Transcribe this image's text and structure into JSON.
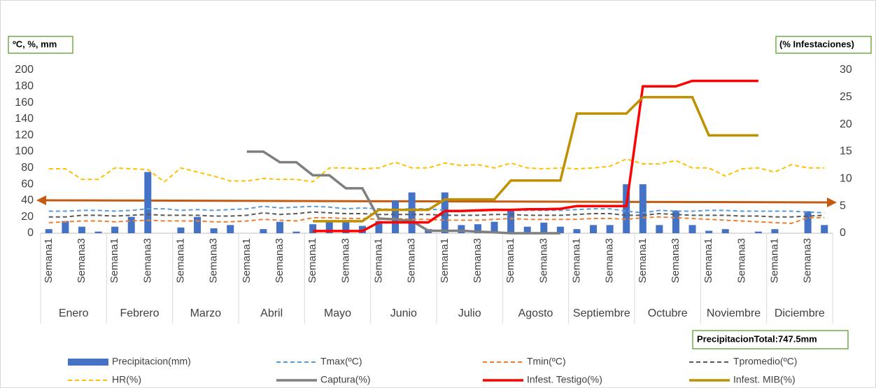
{
  "chart_data": {
    "type": "combo",
    "y_label": "ºC, %, mm",
    "y2_label": "(% Infestaciones)",
    "annotation": "PrecipitacionTotal:747.5mm",
    "groups": [
      "Enero",
      "Febrero",
      "Marzo",
      "Abril",
      "Mayo",
      "Junio",
      "Julio",
      "Agosto",
      "Septiembre",
      "Octubre",
      "Noviembre",
      "Diciembre"
    ],
    "categories": [
      "Semana1",
      null,
      "Semana3",
      null,
      "Semana1",
      null,
      "Semana3",
      null,
      "Semana1",
      null,
      "Semana3",
      null,
      "Semana1",
      null,
      "Semana3",
      null,
      "Semana1",
      null,
      "Semana3",
      null,
      "Semana1",
      null,
      "Semana3",
      null,
      "Semana1",
      null,
      "Semana3",
      null,
      "Semana1",
      null,
      "Semana3",
      null,
      "Semana1",
      null,
      "Semana3",
      null,
      "Semana1",
      null,
      "Semana3",
      null,
      "Semana1",
      null,
      "Semana3",
      null,
      "Semana1",
      null,
      "Semana3",
      null
    ],
    "ylim": [
      0,
      200
    ],
    "yticks": [
      0,
      20,
      40,
      60,
      80,
      100,
      120,
      140,
      160,
      180,
      200
    ],
    "y2lim": [
      0,
      30
    ],
    "y2ticks": [
      0,
      5,
      10,
      15,
      20,
      25,
      30
    ],
    "grid": false,
    "series": [
      {
        "name": "Precipitacion(mm)",
        "type": "bar",
        "color": "#4472c4",
        "values": [
          5,
          15,
          8,
          2,
          8,
          20,
          75,
          0,
          7,
          20,
          6,
          10,
          0,
          5,
          14,
          2,
          11,
          15,
          14,
          9,
          15,
          40,
          50,
          5,
          50,
          10,
          11,
          14,
          30,
          8,
          13,
          8,
          5,
          10,
          10,
          60,
          60,
          10,
          28,
          10,
          3,
          5,
          0,
          2,
          5,
          0,
          27,
          10
        ]
      },
      {
        "name": "Tmax(ºC)",
        "type": "line",
        "dashed": true,
        "color": "#5b9bd5",
        "values": [
          27,
          27,
          28,
          28,
          27,
          28,
          30,
          30,
          28,
          29,
          28,
          29,
          30,
          33,
          31,
          32,
          33,
          32,
          30,
          31,
          30,
          29,
          30,
          30,
          28,
          28,
          28,
          29,
          28,
          28,
          28,
          28,
          29,
          30,
          30,
          27,
          25,
          28,
          27,
          27,
          28,
          28,
          27,
          27,
          27,
          27,
          26,
          25
        ]
      },
      {
        "name": "Tmin(ºC)",
        "type": "line",
        "dashed": true,
        "color": "#ed7d31",
        "values": [
          13,
          14,
          15,
          15,
          14,
          15,
          16,
          15,
          15,
          15,
          14,
          14,
          15,
          17,
          16,
          15,
          19,
          19,
          18,
          18,
          17,
          18,
          17,
          17,
          16,
          16,
          16,
          17,
          18,
          17,
          17,
          17,
          17,
          18,
          18,
          17,
          19,
          20,
          19,
          18,
          17,
          16,
          15,
          14,
          13,
          12,
          19,
          19
        ]
      },
      {
        "name": "Tpromedio(ºC)",
        "type": "line",
        "dashed": true,
        "color": "#595959",
        "values": [
          20,
          20,
          22,
          22,
          21,
          22,
          23,
          22,
          22,
          22,
          21,
          21,
          22,
          25,
          23,
          24,
          26,
          25,
          24,
          24,
          23,
          23,
          23,
          23,
          22,
          22,
          22,
          23,
          23,
          22,
          22,
          22,
          23,
          24,
          24,
          22,
          22,
          24,
          23,
          22,
          22,
          22,
          21,
          21,
          20,
          20,
          21,
          22
        ]
      },
      {
        "name": "HR(%)",
        "type": "line",
        "dashed": true,
        "color": "#ffc000",
        "values": [
          79,
          79,
          66,
          66,
          80,
          79,
          78,
          63,
          80,
          75,
          70,
          64,
          64,
          67,
          66,
          66,
          63,
          80,
          80,
          79,
          80,
          87,
          80,
          80,
          86,
          83,
          84,
          80,
          86,
          80,
          79,
          80,
          79,
          80,
          82,
          91,
          85,
          85,
          89,
          80,
          80,
          70,
          79,
          80,
          75,
          84,
          80,
          80
        ]
      },
      {
        "name": "Captura(%)",
        "type": "line",
        "dashed": false,
        "color": "#7f7f7f",
        "values": [
          null,
          null,
          null,
          null,
          null,
          null,
          null,
          null,
          null,
          null,
          null,
          null,
          100,
          100,
          87,
          87,
          71,
          71,
          55,
          55,
          18,
          17,
          15,
          3,
          3,
          3,
          2,
          1,
          0,
          0,
          0,
          0,
          null,
          null,
          null,
          null,
          null,
          null,
          null,
          null,
          null,
          null,
          null,
          null,
          null,
          null,
          null,
          null
        ]
      },
      {
        "name": "Infest. Testigo(%)",
        "type": "line",
        "dashed": false,
        "axis": "y2",
        "color": "#ff0000",
        "values": [
          null,
          null,
          null,
          null,
          null,
          null,
          null,
          null,
          null,
          null,
          null,
          null,
          null,
          null,
          null,
          null,
          0.4,
          0.4,
          0.4,
          0.4,
          2,
          2,
          2,
          2,
          4.1,
          4.1,
          4.2,
          4.3,
          4.3,
          4.4,
          4.4,
          4.5,
          5,
          5,
          5,
          5,
          27,
          27,
          27,
          28,
          28,
          28,
          28,
          28,
          null,
          null,
          null,
          null
        ]
      },
      {
        "name": "Infest. MIB(%)",
        "type": "line",
        "dashed": false,
        "axis": "y2",
        "color": "#bf9000",
        "values": [
          null,
          null,
          null,
          null,
          null,
          null,
          null,
          null,
          null,
          null,
          null,
          null,
          null,
          null,
          null,
          null,
          2.2,
          2.2,
          2.2,
          2.2,
          4.3,
          4.3,
          4.3,
          4.3,
          6.2,
          6.2,
          6.2,
          6.2,
          9.7,
          9.7,
          9.7,
          9.7,
          22,
          22,
          22,
          22,
          25,
          25,
          25,
          25,
          18,
          18,
          18,
          18,
          null,
          null,
          null,
          null
        ]
      }
    ]
  }
}
